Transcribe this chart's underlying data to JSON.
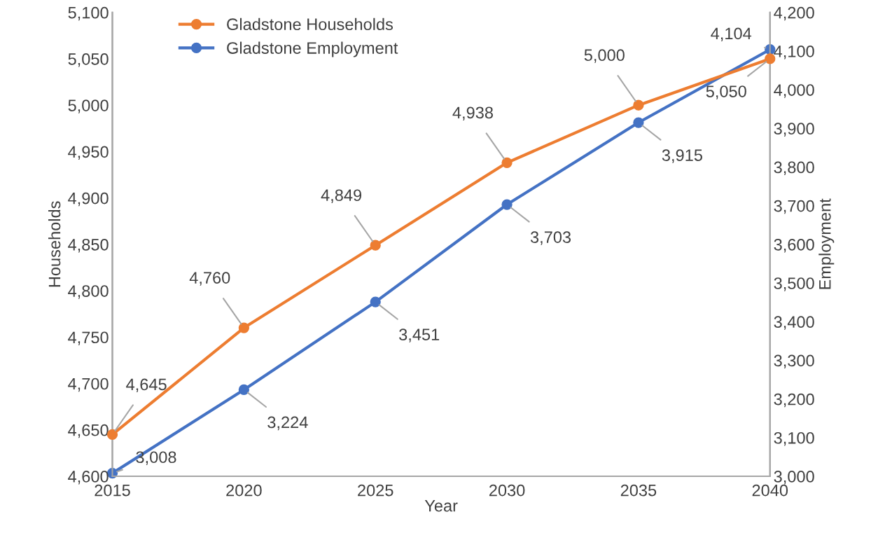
{
  "chart_data": {
    "type": "line",
    "xlabel": "Year",
    "ylabel": "Households",
    "y2label": "Employment",
    "x": [
      2015,
      2020,
      2025,
      2030,
      2035,
      2040
    ],
    "series": [
      {
        "name": "Gladstone Households",
        "color": "#ed7d31",
        "values": [
          4645,
          4760,
          4849,
          4938,
          5000,
          5050
        ],
        "value_labels": [
          "4,645",
          "4,760",
          "4,849",
          "4,938",
          "5,000",
          "5,050"
        ]
      },
      {
        "name": "Gladstone Employment",
        "color": "#4472c4",
        "axis": "y2",
        "values": [
          3008,
          3224,
          3451,
          3703,
          3915,
          4104
        ],
        "value_labels": [
          "3,008",
          "3,224",
          "3,451",
          "3,703",
          "3,915",
          "4,104"
        ]
      }
    ],
    "xlim": [
      2015,
      2040
    ],
    "xticks": [
      2015,
      2020,
      2025,
      2030,
      2035,
      2040
    ],
    "ylim": [
      4600,
      5100
    ],
    "yticks": [
      {
        "value": 4600,
        "label": "4,600"
      },
      {
        "value": 4650,
        "label": "4,650"
      },
      {
        "value": 4700,
        "label": "4,700"
      },
      {
        "value": 4750,
        "label": "4,750"
      },
      {
        "value": 4800,
        "label": "4,800"
      },
      {
        "value": 4850,
        "label": "4,850"
      },
      {
        "value": 4900,
        "label": "4,900"
      },
      {
        "value": 4950,
        "label": "4,950"
      },
      {
        "value": 5000,
        "label": "5,000"
      },
      {
        "value": 5050,
        "label": "5,050"
      },
      {
        "value": 5100,
        "label": "5,100"
      }
    ],
    "y2lim": [
      3000,
      4200
    ],
    "y2ticks": [
      {
        "value": 3000,
        "label": "3,000"
      },
      {
        "value": 3100,
        "label": "3,100"
      },
      {
        "value": 3200,
        "label": "3,200"
      },
      {
        "value": 3300,
        "label": "3,300"
      },
      {
        "value": 3400,
        "label": "3,400"
      },
      {
        "value": 3500,
        "label": "3,500"
      },
      {
        "value": 3600,
        "label": "3,600"
      },
      {
        "value": 3700,
        "label": "3,700"
      },
      {
        "value": 3800,
        "label": "3,800"
      },
      {
        "value": 3900,
        "label": "3,900"
      },
      {
        "value": 4000,
        "label": "4,000"
      },
      {
        "value": 4100,
        "label": "4,100"
      },
      {
        "value": 4200,
        "label": "4,200"
      }
    ],
    "grid": false,
    "legend": "top left",
    "marker": "circle",
    "line_style": "solid"
  }
}
